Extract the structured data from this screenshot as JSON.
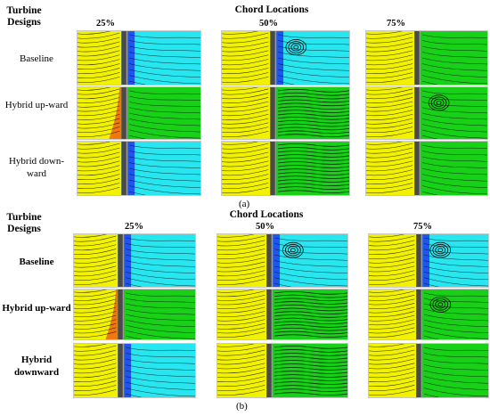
{
  "panels": [
    {
      "caption": "(a)",
      "header_designs": "Turbine Designs",
      "header_chord": "Chord Locations",
      "columns": [
        "25%",
        "50%",
        "75%"
      ],
      "rows": [
        "Baseline",
        "Hybrid up-ward",
        "Hybrid down-ward"
      ],
      "row_labels_bold": false
    },
    {
      "caption": "(b)",
      "header_designs": "Turbine Designs",
      "header_chord": "Chord Locations",
      "columns": [
        "25%",
        "50%",
        "75%"
      ],
      "rows": [
        "Baseline",
        "Hybrid up-ward",
        "Hybrid downward"
      ],
      "row_labels_bold": true
    }
  ],
  "colors": {
    "yellow": "#f2f200",
    "cyan": "#27e6f0",
    "green": "#17d017",
    "blue": "#1f3cf0",
    "orange": "#f06a10",
    "wall": "#4a4a4a",
    "streamline": "#000000"
  },
  "cells": [
    [
      [
        "cyan-blue",
        "cyan-vortex",
        "green-light"
      ],
      [
        "green-orange",
        "green-wavy",
        "green-vortex"
      ],
      [
        "cyan-blue",
        "green-wavy",
        "green-light"
      ]
    ],
    [
      [
        "cyan-blue",
        "cyan-vortex",
        "cyan-blue-vortex"
      ],
      [
        "green-orange",
        "green-wavy",
        "green-vortex"
      ],
      [
        "cyan-blue",
        "green-wavy",
        "green-light"
      ]
    ]
  ]
}
